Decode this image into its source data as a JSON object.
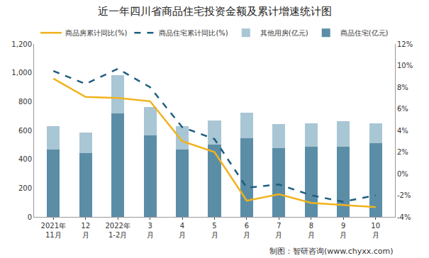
{
  "chart_data": {
    "type": "bar",
    "title": "近一年四川省商品住宅投资金额及累计增速统计图",
    "source": "制图：智研咨询(www.chyxx.com)",
    "categories": [
      "2021年\n11月",
      "12\n月",
      "2022年\n1-2月",
      "3\n月",
      "4\n月",
      "5\n月",
      "6\n月",
      "7\n月",
      "8\n月",
      "9\n月",
      "10\n月"
    ],
    "stacked": true,
    "legend": "top",
    "grid": false,
    "series": [
      {
        "name": "商品住宅(亿元)",
        "type": "bar",
        "color": "#5b8ea6",
        "values": [
          465,
          445,
          720,
          565,
          465,
          500,
          545,
          475,
          485,
          485,
          510
        ]
      },
      {
        "name": "其他用房(亿元)",
        "type": "bar",
        "color": "#a9c6d5",
        "values": [
          165,
          140,
          265,
          195,
          165,
          170,
          180,
          170,
          165,
          180,
          140
        ]
      },
      {
        "name": "商品住宅累计同比(%)",
        "type": "line",
        "axis": "y2",
        "color": "#1f5f80",
        "line_style": "dashed",
        "values": [
          9.5,
          8.3,
          9.7,
          8.0,
          4.3,
          3.2,
          -1.3,
          -1.0,
          -2.0,
          -2.6,
          -2.0
        ]
      },
      {
        "name": "商品房累计同比(%)",
        "type": "line",
        "axis": "y2",
        "color": "#f2b21c",
        "line_style": "solid",
        "values": [
          8.8,
          7.1,
          7.0,
          6.7,
          3.0,
          2.0,
          -2.5,
          -1.9,
          -2.7,
          -2.9,
          -3.1
        ]
      }
    ],
    "ylim": [
      0,
      1200
    ],
    "yticks": [
      0,
      200,
      400,
      600,
      800,
      {
        "value": 1000,
        "label": "1,000"
      },
      {
        "value": 1200,
        "label": "1,200"
      }
    ],
    "y2lim": [
      -4,
      12
    ],
    "y2ticks": [
      {
        "value": -4,
        "label": "-4%"
      },
      {
        "value": -2,
        "label": "-2%"
      },
      {
        "value": 0,
        "label": "0%"
      },
      {
        "value": 2,
        "label": "2%"
      },
      {
        "value": 4,
        "label": "4%"
      },
      {
        "value": 6,
        "label": "6%"
      },
      {
        "value": 8,
        "label": "8%"
      },
      {
        "value": 10,
        "label": "10%"
      },
      {
        "value": 12,
        "label": "12%"
      }
    ]
  }
}
